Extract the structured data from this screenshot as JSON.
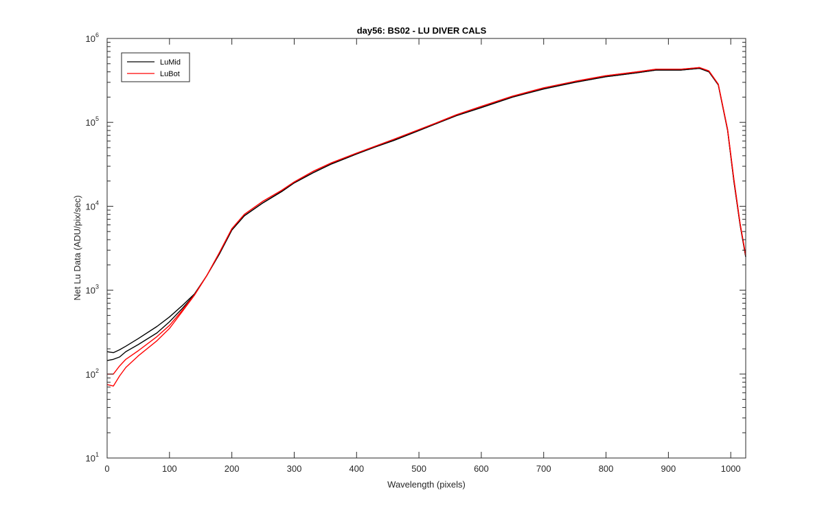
{
  "chart_data": {
    "type": "line",
    "title": "day56: BS02 - LU DIVER CALS",
    "xlabel": "Wavelength (pixels)",
    "ylabel": "Net Lu Data (ADU/pix/sec)",
    "xlim": [
      0,
      1024
    ],
    "ylim": [
      10,
      1000000
    ],
    "yscale": "log",
    "grid": false,
    "legend_position": "top-left",
    "x_ticks": [
      "0",
      "100",
      "200",
      "300",
      "400",
      "500",
      "600",
      "700",
      "800",
      "900",
      "1000"
    ],
    "y_ticks": [
      {
        "base": "10",
        "exp": "1"
      },
      {
        "base": "10",
        "exp": "2"
      },
      {
        "base": "10",
        "exp": "3"
      },
      {
        "base": "10",
        "exp": "4"
      },
      {
        "base": "10",
        "exp": "5"
      },
      {
        "base": "10",
        "exp": "6"
      }
    ],
    "series": [
      {
        "name": "LuMid",
        "color": "#000000",
        "variants": [
          {
            "x": [
              0,
              10,
              20,
              30,
              50,
              80,
              100,
              120,
              140,
              160,
              180,
              200,
              220,
              250,
              280,
              300,
              330,
              360,
              400,
              430,
              460,
              500,
              530,
              560,
              600,
              650,
              700,
              750,
              800,
              850,
              880,
              920,
              950,
              965,
              980,
              995,
              1005,
              1015,
              1024
            ],
            "y": [
              185,
              180,
              195,
              215,
              265,
              370,
              480,
              650,
              900,
              1500,
              2700,
              5200,
              7700,
              11000,
              15000,
              19000,
              25000,
              32000,
              42000,
              51000,
              61000,
              80000,
              98000,
              120000,
              150000,
              200000,
              250000,
              300000,
              350000,
              390000,
              420000,
              420000,
              440000,
              400000,
              280000,
              80000,
              20000,
              6000,
              2500
            ]
          },
          {
            "x": [
              0,
              10,
              20,
              30,
              50,
              80,
              100,
              120,
              140,
              160,
              180,
              200,
              220,
              250,
              280,
              300,
              330,
              360,
              400,
              430,
              460,
              500,
              530,
              560,
              600,
              650,
              700,
              750,
              800,
              850,
              880,
              920,
              950,
              965,
              980,
              995,
              1005,
              1015,
              1024
            ],
            "y": [
              145,
              150,
              160,
              185,
              225,
              310,
              420,
              600,
              880,
              1500,
              2700,
              5200,
              7700,
              11000,
              15000,
              19000,
              25000,
              32000,
              42000,
              51000,
              61000,
              80000,
              98000,
              120000,
              150000,
              200000,
              250000,
              300000,
              350000,
              390000,
              420000,
              420000,
              440000,
              400000,
              280000,
              80000,
              20000,
              6000,
              2500
            ]
          }
        ]
      },
      {
        "name": "LuBot",
        "color": "#ff0000",
        "variants": [
          {
            "x": [
              0,
              10,
              20,
              30,
              50,
              80,
              100,
              120,
              140,
              160,
              180,
              200,
              220,
              250,
              280,
              300,
              330,
              360,
              400,
              430,
              460,
              500,
              530,
              560,
              600,
              650,
              700,
              750,
              800,
              850,
              880,
              920,
              950,
              965,
              980,
              995,
              1005,
              1015,
              1024
            ],
            "y": [
              100,
              100,
              125,
              150,
              190,
              280,
              380,
              570,
              880,
              1500,
              2800,
              5400,
              8000,
              11500,
              15500,
              19500,
              26000,
              33000,
              43000,
              52000,
              63000,
              82000,
              100000,
              123000,
              155000,
              205000,
              258000,
              308000,
              360000,
              400000,
              430000,
              430000,
              450000,
              410000,
              285000,
              82000,
              21000,
              6200,
              2600
            ]
          },
          {
            "x": [
              0,
              10,
              20,
              30,
              50,
              80,
              100,
              120,
              140,
              160,
              180,
              200,
              220,
              250,
              280,
              300,
              330,
              360,
              400,
              430,
              460,
              500,
              530,
              560,
              600,
              650,
              700,
              750,
              800,
              850,
              880,
              920,
              950,
              965,
              980,
              995,
              1005,
              1015,
              1024
            ],
            "y": [
              75,
              72,
              95,
              120,
              165,
              250,
              350,
              550,
              870,
              1500,
              2800,
              5400,
              8000,
              11500,
              15500,
              19500,
              26000,
              33000,
              43000,
              52000,
              63000,
              82000,
              100000,
              123000,
              155000,
              205000,
              258000,
              308000,
              360000,
              400000,
              430000,
              430000,
              450000,
              410000,
              285000,
              82000,
              21000,
              6200,
              2600
            ]
          }
        ]
      }
    ]
  }
}
